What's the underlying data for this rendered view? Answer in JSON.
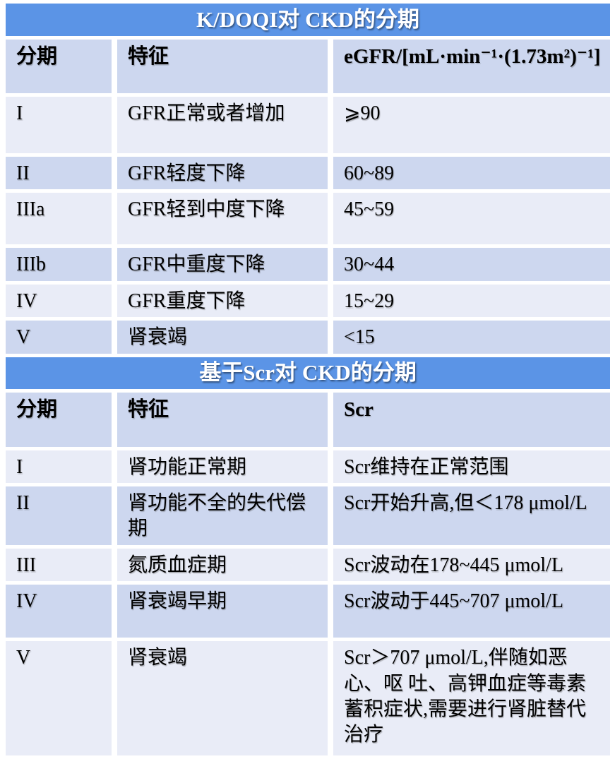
{
  "page": {
    "background": "#ffffff"
  },
  "colors": {
    "title_band_blue": "#5B94E6",
    "band_dark": "#CDD7EF",
    "band_light": "#E9ECF7",
    "title_text": "#FFFFFF",
    "body_text": "#000000"
  },
  "tables": [
    {
      "title": "K/DOQI对 CKD的分期",
      "columns": [
        "分期",
        "特征",
        "eGFR/[mL·min⁻¹·(1.73m²)⁻¹]"
      ],
      "rows": [
        {
          "stage": "I",
          "feature": "GFR正常或者增加",
          "value": "⩾90"
        },
        {
          "stage": "II",
          "feature": "GFR轻度下降",
          "value": "60~89"
        },
        {
          "stage": "IIIa",
          "feature": "GFR轻到中度下降",
          "value": "45~59"
        },
        {
          "stage": "IIIb",
          "feature": "GFR中重度下降",
          "value": "30~44"
        },
        {
          "stage": "IV",
          "feature": "GFR重度下降",
          "value": "15~29"
        },
        {
          "stage": "V",
          "feature": "肾衰竭",
          "value": "<15"
        }
      ]
    },
    {
      "title": "基于Scr对 CKD的分期",
      "columns": [
        "分期",
        "特征",
        "Scr"
      ],
      "rows": [
        {
          "stage": "I",
          "feature": "肾功能正常期",
          "value": "Scr维持在正常范围"
        },
        {
          "stage": "II",
          "feature": "肾功能不全的失代偿期",
          "value": "Scr开始升高,但＜178 μmol/L"
        },
        {
          "stage": "III",
          "feature": "氮质血症期",
          "value": "Scr波动在178~445 μmol/L"
        },
        {
          "stage": "IV",
          "feature": "肾衰竭早期",
          "value": "Scr波动于445~707 μmol/L"
        },
        {
          "stage": "V",
          "feature": "肾衰竭",
          "value": "Scr＞707 μmol/L,伴随如恶心、呕 吐、高钾血症等毒素蓄积症状,需要进行肾脏替代治疗"
        }
      ]
    }
  ]
}
